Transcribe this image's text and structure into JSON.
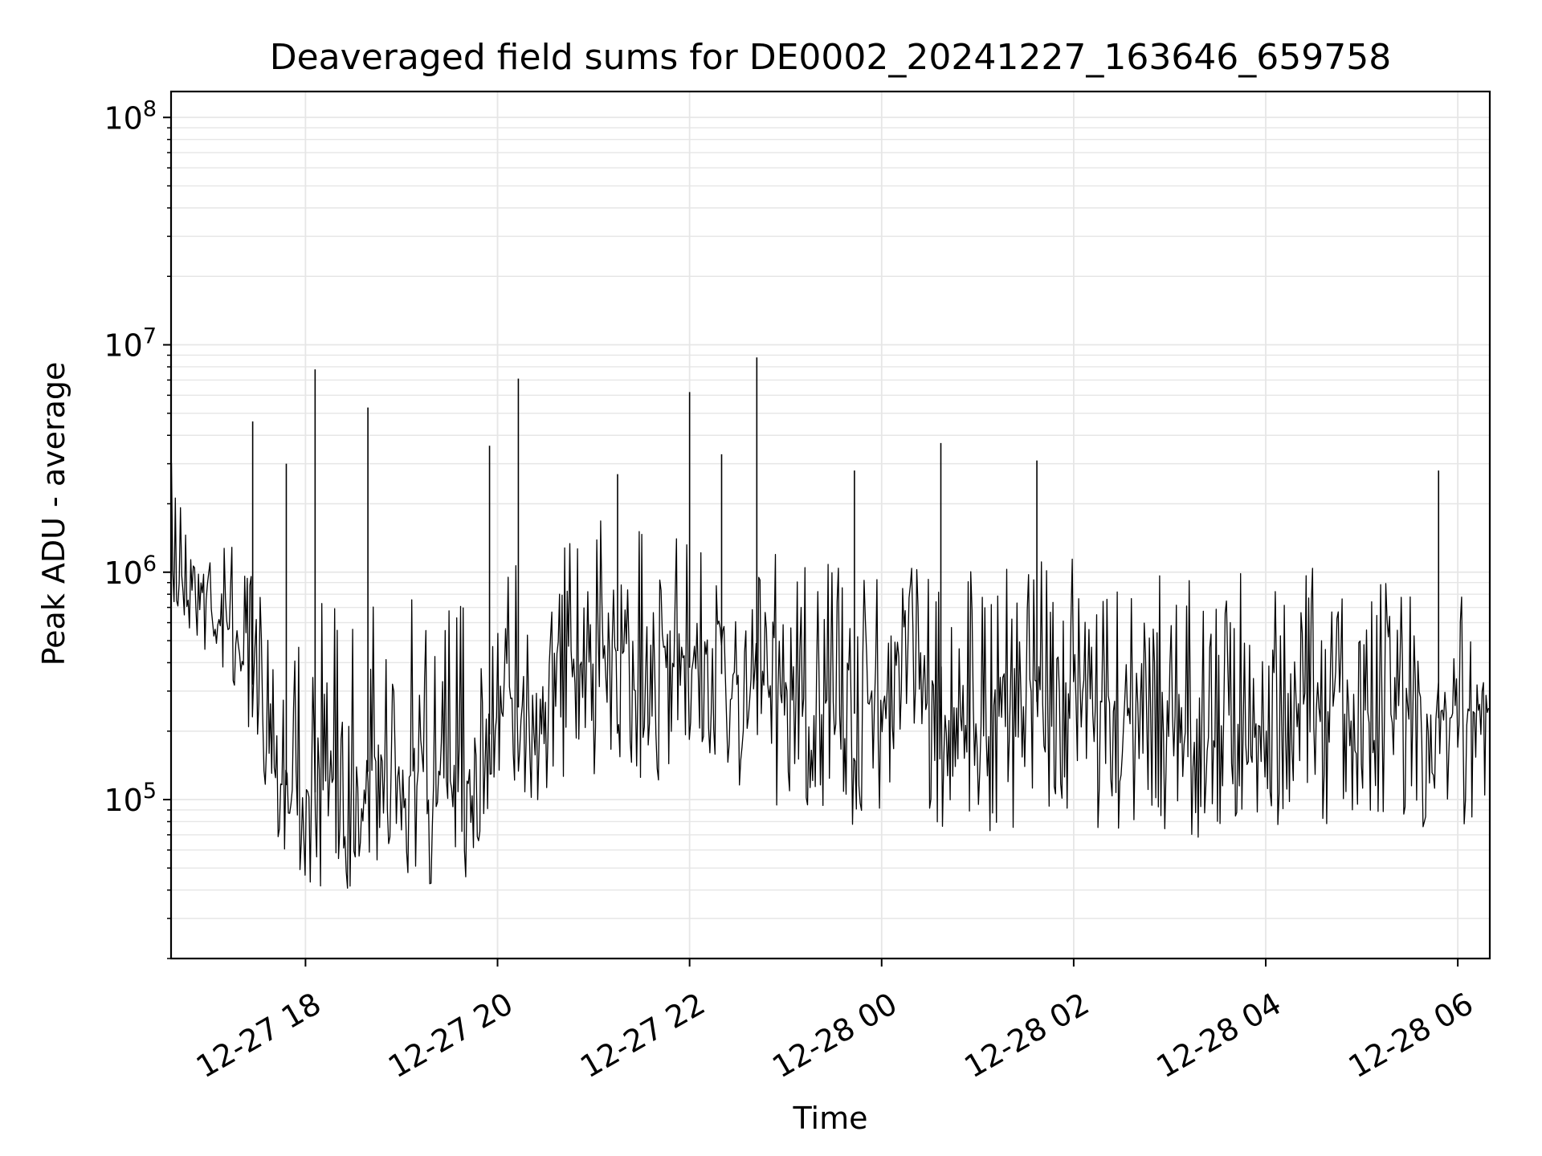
{
  "chart_data": {
    "type": "line",
    "title": "Deaveraged field sums for DE0002_20241227_163646_659758",
    "xlabel": "Time",
    "ylabel": "Peak ADU - average",
    "yscale": "log",
    "ylim": [
      20000,
      130000000
    ],
    "xlim": [
      "2024-12-27 16:36",
      "2024-12-28 06:20"
    ],
    "grid": true,
    "line_color": "#000000",
    "x_ticks": [
      {
        "value": "2024-12-27 18:00",
        "label": "12-27 18"
      },
      {
        "value": "2024-12-27 20:00",
        "label": "12-27 20"
      },
      {
        "value": "2024-12-27 22:00",
        "label": "12-27 22"
      },
      {
        "value": "2024-12-28 00:00",
        "label": "12-28 00"
      },
      {
        "value": "2024-12-28 02:00",
        "label": "12-28 02"
      },
      {
        "value": "2024-12-28 04:00",
        "label": "12-28 04"
      },
      {
        "value": "2024-12-28 06:00",
        "label": "12-28 06"
      }
    ],
    "y_ticks": [
      {
        "value": 100000,
        "base": "10",
        "exp": "5"
      },
      {
        "value": 1000000,
        "base": "10",
        "exp": "6"
      },
      {
        "value": 10000000,
        "base": "10",
        "exp": "7"
      },
      {
        "value": 100000000,
        "base": "10",
        "exp": "8"
      }
    ],
    "series": [
      {
        "x": [
          "2024-12-27 16:36",
          "2024-12-27 16:45",
          "2024-12-27 17:00",
          "2024-12-27 17:15",
          "2024-12-27 17:30",
          "2024-12-27 17:45",
          "2024-12-27 18:00",
          "2024-12-27 18:15",
          "2024-12-27 18:30",
          "2024-12-27 18:45",
          "2024-12-27 19:00",
          "2024-12-27 19:15",
          "2024-12-27 19:30",
          "2024-12-27 19:45",
          "2024-12-27 20:00",
          "2024-12-27 20:15",
          "2024-12-27 20:30",
          "2024-12-27 20:45",
          "2024-12-27 21:00",
          "2024-12-27 21:15",
          "2024-12-27 21:30",
          "2024-12-27 21:45",
          "2024-12-27 22:00",
          "2024-12-27 22:15",
          "2024-12-27 22:30",
          "2024-12-27 22:45",
          "2024-12-27 23:00",
          "2024-12-27 23:15",
          "2024-12-27 23:30",
          "2024-12-27 23:45",
          "2024-12-28 00:00",
          "2024-12-28 00:15",
          "2024-12-28 00:30",
          "2024-12-28 00:45",
          "2024-12-28 01:00",
          "2024-12-28 01:15",
          "2024-12-28 01:30",
          "2024-12-28 01:45",
          "2024-12-28 02:00",
          "2024-12-28 02:15",
          "2024-12-28 02:30",
          "2024-12-28 02:45",
          "2024-12-28 03:00",
          "2024-12-28 03:15",
          "2024-12-28 03:30",
          "2024-12-28 03:45",
          "2024-12-28 04:00",
          "2024-12-28 04:15",
          "2024-12-28 04:30",
          "2024-12-28 04:45",
          "2024-12-28 05:00",
          "2024-12-28 05:15",
          "2024-12-28 05:30",
          "2024-12-28 05:45",
          "2024-12-28 06:00",
          "2024-12-28 06:15",
          "2024-12-28 06:20"
        ],
        "y": [
          900000,
          1000000,
          750000,
          550000,
          280000,
          120000,
          100000,
          120000,
          110000,
          150000,
          140000,
          130000,
          120000,
          150000,
          220000,
          260000,
          320000,
          380000,
          420000,
          450000,
          400000,
          380000,
          380000,
          360000,
          350000,
          330000,
          300000,
          260000,
          230000,
          240000,
          300000,
          320000,
          290000,
          240000,
          220000,
          230000,
          260000,
          280000,
          330000,
          240000,
          230000,
          220000,
          240000,
          200000,
          200000,
          210000,
          210000,
          280000,
          260000,
          230000,
          250000,
          240000,
          230000,
          230000,
          220000,
          260000,
          280000
        ],
        "y_low": [
          500000,
          550000,
          400000,
          300000,
          150000,
          60000,
          40000,
          40000,
          40000,
          45000,
          40000,
          40000,
          40000,
          45000,
          80000,
          90000,
          100000,
          120000,
          130000,
          110000,
          110000,
          100000,
          100000,
          120000,
          110000,
          100000,
          80000,
          70000,
          60000,
          65000,
          90000,
          100000,
          80000,
          70000,
          65000,
          70000,
          80000,
          85000,
          90000,
          65000,
          70000,
          65000,
          75000,
          65000,
          70000,
          75000,
          70000,
          80000,
          75000,
          70000,
          80000,
          75000,
          70000,
          75000,
          70000,
          80000,
          85000
        ],
        "y_high": [
          3600000,
          3000000,
          2200000,
          1400000,
          900000,
          1000000,
          1000000,
          900000,
          800000,
          900000,
          800000,
          1000000,
          900000,
          1200000,
          1400000,
          1600000,
          1800000,
          2000000,
          1800000,
          1600000,
          1600000,
          1500000,
          1500000,
          1400000,
          1300000,
          1300000,
          1300000,
          1200000,
          1100000,
          1000000,
          1200000,
          1300000,
          1200000,
          1100000,
          1100000,
          1100000,
          1200000,
          1200000,
          1200000,
          1100000,
          1100000,
          1000000,
          1100000,
          1000000,
          1000000,
          1100000,
          1000000,
          1200000,
          1200000,
          1100000,
          1100000,
          1100000,
          1000000,
          1000000,
          1000000,
          1100000,
          1200000
        ],
        "spikes": [
          {
            "x": "2024-12-27 17:27",
            "y": 4600000
          },
          {
            "x": "2024-12-27 17:48",
            "y": 3000000
          },
          {
            "x": "2024-12-27 18:06",
            "y": 7800000
          },
          {
            "x": "2024-12-27 18:39",
            "y": 5300000
          },
          {
            "x": "2024-12-27 19:55",
            "y": 3600000
          },
          {
            "x": "2024-12-27 20:13",
            "y": 7100000
          },
          {
            "x": "2024-12-27 21:15",
            "y": 2700000
          },
          {
            "x": "2024-12-27 22:00",
            "y": 6200000
          },
          {
            "x": "2024-12-27 22:20",
            "y": 3300000
          },
          {
            "x": "2024-12-27 22:42",
            "y": 8800000
          },
          {
            "x": "2024-12-27 23:43",
            "y": 2800000
          },
          {
            "x": "2024-12-28 00:37",
            "y": 3700000
          },
          {
            "x": "2024-12-28 01:37",
            "y": 3100000
          },
          {
            "x": "2024-12-28 05:48",
            "y": 2800000
          }
        ]
      }
    ]
  }
}
